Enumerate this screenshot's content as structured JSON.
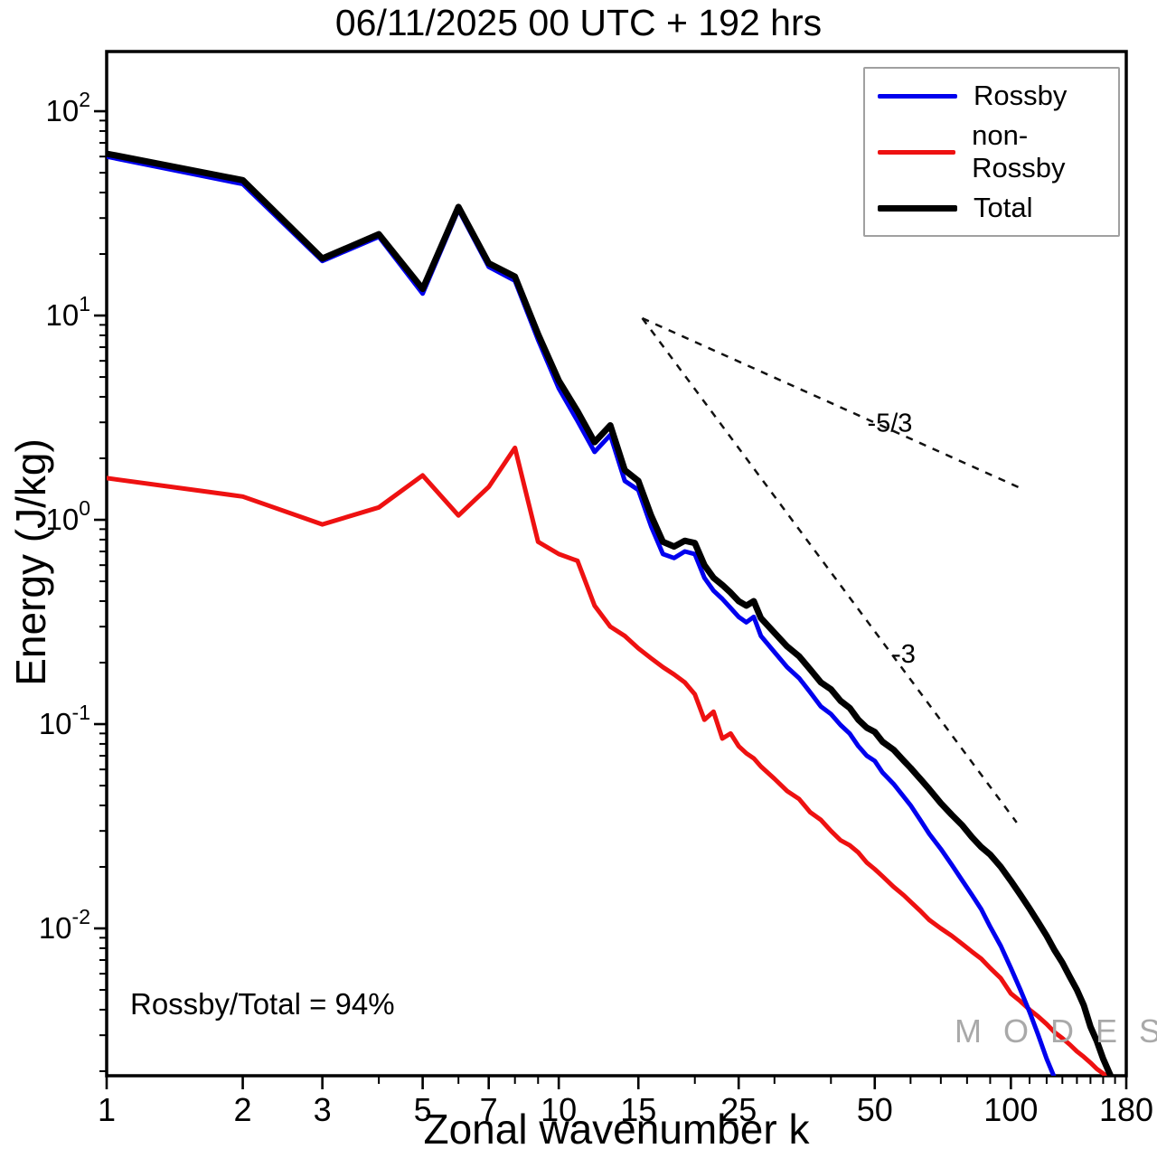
{
  "watermark": {
    "text": "M O D E S",
    "mark": "©"
  },
  "legend": [
    {
      "label": "Rossby",
      "color": "#0000ee",
      "line_width": 5
    },
    {
      "label": "non-Rossby",
      "color": "#ee1111",
      "line_width": 5
    },
    {
      "label": "Total",
      "color": "#000000",
      "line_width": 7
    }
  ],
  "chart_data": {
    "type": "line",
    "title": "06/11/2025  00 UTC  + 192 hrs",
    "xlabel": "Zonal wavenumber k",
    "ylabel": "Energy (J/kg)",
    "annotation": "Rossby/Total = 94%",
    "xscale": "log",
    "yscale": "log",
    "xlim": [
      1,
      180
    ],
    "ylim": [
      0.0019,
      196
    ],
    "grid": false,
    "legend_position": "top-right",
    "xticks": {
      "major": [
        1,
        2,
        3,
        5,
        7,
        10,
        15,
        25,
        50,
        100,
        180
      ],
      "minor": [
        4,
        6,
        8,
        9,
        20,
        30,
        40,
        60,
        70,
        80,
        90,
        110,
        120,
        130,
        140,
        150,
        160,
        170
      ]
    },
    "yticks": {
      "major_exponents": [
        -2,
        -1,
        0,
        1,
        2
      ]
    },
    "series": [
      {
        "name": "non-Rossby",
        "color": "#ee1111",
        "width": 5,
        "x": [
          1,
          2,
          3,
          4,
          5,
          6,
          7,
          8,
          9,
          10,
          11,
          12,
          13,
          14,
          15,
          16,
          17,
          18,
          19,
          20,
          21,
          22,
          23,
          24,
          25,
          26,
          27,
          28,
          30,
          32,
          34,
          36,
          38,
          40,
          42,
          44,
          46,
          48,
          50,
          52,
          55,
          58,
          60,
          63,
          66,
          70,
          74,
          78,
          82,
          86,
          90,
          95,
          100,
          105,
          110,
          115,
          120,
          125,
          130,
          135,
          140,
          145,
          150,
          155,
          160,
          165,
          170
        ],
        "y": [
          1.6,
          1.3,
          0.95,
          1.15,
          1.65,
          1.05,
          1.45,
          2.25,
          0.78,
          0.68,
          0.63,
          0.38,
          0.3,
          0.27,
          0.235,
          0.21,
          0.19,
          0.175,
          0.16,
          0.14,
          0.105,
          0.115,
          0.085,
          0.09,
          0.078,
          0.072,
          0.068,
          0.062,
          0.054,
          0.047,
          0.043,
          0.037,
          0.034,
          0.03,
          0.027,
          0.0255,
          0.0235,
          0.021,
          0.0195,
          0.018,
          0.016,
          0.0145,
          0.0135,
          0.0122,
          0.011,
          0.01,
          0.0092,
          0.0084,
          0.0077,
          0.0071,
          0.0064,
          0.0057,
          0.0048,
          0.0044,
          0.004,
          0.0037,
          0.0034,
          0.0031,
          0.0029,
          0.0027,
          0.0025,
          0.00235,
          0.0022,
          0.00205,
          0.00195,
          0.00185,
          0.0018
        ]
      },
      {
        "name": "Rossby",
        "color": "#0000ee",
        "width": 5,
        "x": [
          1,
          2,
          3,
          4,
          5,
          6,
          7,
          8,
          9,
          10,
          11,
          12,
          13,
          14,
          15,
          16,
          17,
          18,
          19,
          20,
          21,
          22,
          23,
          24,
          25,
          26,
          27,
          28,
          30,
          32,
          34,
          36,
          38,
          40,
          42,
          44,
          46,
          48,
          50,
          52,
          55,
          58,
          60,
          63,
          66,
          70,
          74,
          78,
          82,
          86,
          90,
          95,
          100,
          105,
          110,
          115,
          120,
          125
        ],
        "y": [
          60,
          44,
          18.5,
          24.3,
          12.8,
          33,
          17.3,
          14.8,
          7.6,
          4.4,
          3.05,
          2.15,
          2.6,
          1.55,
          1.4,
          0.93,
          0.68,
          0.65,
          0.7,
          0.68,
          0.52,
          0.45,
          0.41,
          0.37,
          0.335,
          0.315,
          0.335,
          0.27,
          0.225,
          0.19,
          0.168,
          0.143,
          0.122,
          0.112,
          0.099,
          0.09,
          0.078,
          0.07,
          0.066,
          0.058,
          0.051,
          0.044,
          0.04,
          0.034,
          0.029,
          0.0245,
          0.0205,
          0.0172,
          0.0146,
          0.0124,
          0.0102,
          0.0082,
          0.0064,
          0.005,
          0.0039,
          0.003,
          0.0023,
          0.00185
        ]
      },
      {
        "name": "Total",
        "color": "#000000",
        "width": 7,
        "x": [
          1,
          2,
          3,
          4,
          5,
          6,
          7,
          8,
          9,
          10,
          11,
          12,
          13,
          14,
          15,
          16,
          17,
          18,
          19,
          20,
          21,
          22,
          23,
          24,
          25,
          26,
          27,
          28,
          30,
          32,
          34,
          36,
          38,
          40,
          42,
          44,
          46,
          48,
          50,
          52,
          55,
          58,
          60,
          63,
          66,
          70,
          74,
          78,
          82,
          86,
          90,
          95,
          100,
          105,
          110,
          115,
          120,
          125,
          130,
          135,
          140,
          145,
          150,
          155,
          160,
          168
        ],
        "y": [
          62,
          46,
          19,
          25,
          13.5,
          34,
          18,
          15.5,
          8.1,
          4.8,
          3.4,
          2.4,
          2.9,
          1.75,
          1.55,
          1.05,
          0.78,
          0.74,
          0.79,
          0.77,
          0.6,
          0.52,
          0.48,
          0.44,
          0.4,
          0.38,
          0.4,
          0.33,
          0.28,
          0.24,
          0.215,
          0.185,
          0.16,
          0.148,
          0.13,
          0.12,
          0.105,
          0.096,
          0.0915,
          0.082,
          0.075,
          0.066,
          0.061,
          0.054,
          0.048,
          0.041,
          0.036,
          0.032,
          0.028,
          0.025,
          0.023,
          0.02,
          0.0171,
          0.0146,
          0.0125,
          0.0107,
          0.0092,
          0.0078,
          0.0068,
          0.0058,
          0.005,
          0.0042,
          0.0033,
          0.0028,
          0.0023,
          0.0018
        ]
      }
    ],
    "reference_lines": [
      {
        "label": "-5/3",
        "x1": 15.3,
        "y1": 9.7,
        "x2": 105,
        "y2": 1.43,
        "label_x": 54,
        "label_y": 2.7
      },
      {
        "label": "-3",
        "x1": 15.3,
        "y1": 9.7,
        "x2": 103,
        "y2": 0.033,
        "label_x": 58,
        "label_y": 0.2
      }
    ]
  }
}
